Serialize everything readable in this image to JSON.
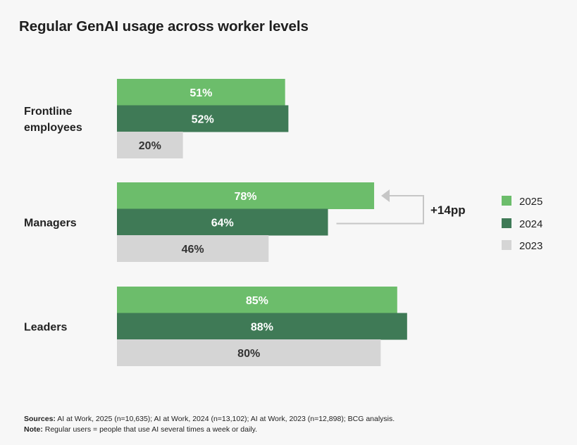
{
  "title": "Regular GenAI usage across worker levels",
  "chart_data": {
    "type": "bar",
    "orientation": "horizontal",
    "title": "Regular GenAI usage across worker levels",
    "categories": [
      [
        "Frontline",
        "employees"
      ],
      [
        "Managers"
      ],
      [
        "Leaders"
      ]
    ],
    "series": [
      {
        "name": "2025",
        "color": "#6cbd6b",
        "label_color": "#ffffff",
        "values": [
          51,
          78,
          85
        ]
      },
      {
        "name": "2024",
        "color": "#3f7a56",
        "label_color": "#ffffff",
        "values": [
          52,
          64,
          88
        ]
      },
      {
        "name": "2023",
        "color": "#d5d5d5",
        "label_color": "#333333",
        "values": [
          20,
          46,
          80
        ]
      }
    ],
    "value_suffix": "%",
    "xlim": [
      0,
      100
    ],
    "legend_position": "right",
    "annotation": {
      "text": "+14pp",
      "category": "Managers",
      "from_series": "2024",
      "to_series": "2025"
    }
  },
  "footer": {
    "sources_label": "Sources:",
    "sources_text": " AI at Work, 2025 (n=10,635);  AI at Work, 2024 (n=13,102); AI at Work, 2023 (n=12,898); BCG analysis.",
    "note_label": "Note:",
    "note_text": " Regular users = people that use AI several times a week or daily."
  }
}
